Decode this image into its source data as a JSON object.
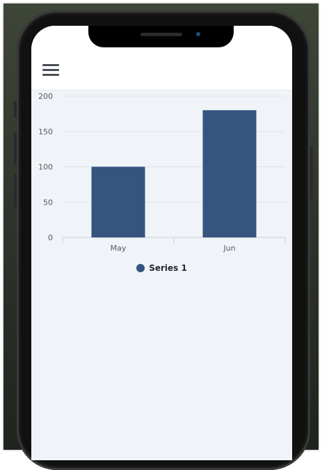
{
  "header": {
    "menu_icon": "hamburger-menu-icon"
  },
  "chart_data": {
    "type": "bar",
    "categories": [
      "May",
      "Jun"
    ],
    "series": [
      {
        "name": "Series 1",
        "values": [
          100,
          180
        ]
      }
    ],
    "ylim": [
      0,
      200
    ],
    "yticks": [
      0,
      50,
      100,
      150,
      200
    ],
    "grid": true,
    "legend": "bottom-center",
    "bar_color": "#35557f"
  },
  "colors": {
    "accent": "#35557f",
    "background": "#f0f4f8"
  }
}
